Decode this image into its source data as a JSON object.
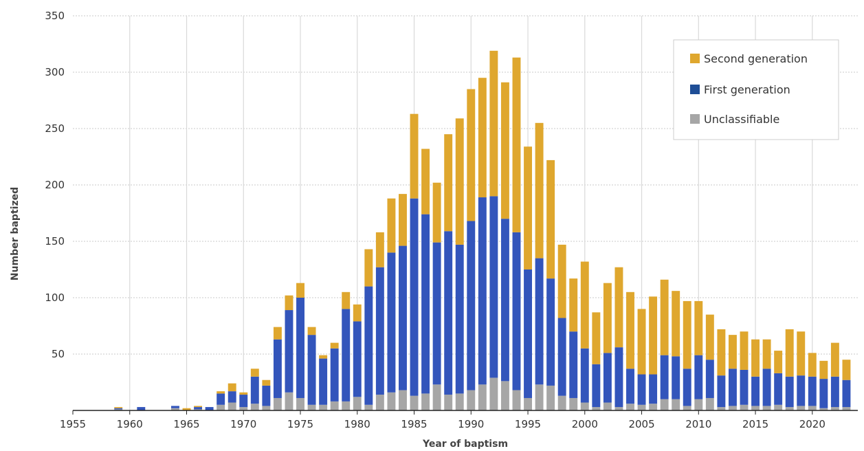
{
  "chart_data": {
    "type": "bar",
    "stacked": true,
    "title": "",
    "xlabel": "Year of baptism",
    "ylabel": "Number baptized",
    "xlim": [
      1955,
      2024
    ],
    "ylim": [
      0,
      350
    ],
    "x_ticks": [
      1955,
      1960,
      1965,
      1970,
      1975,
      1980,
      1985,
      1990,
      1995,
      2000,
      2005,
      2010,
      2015,
      2020
    ],
    "y_ticks": [
      50,
      100,
      150,
      200,
      250,
      300,
      350
    ],
    "grid": true,
    "legend_position": "top-right",
    "x": [
      1959,
      1960,
      1961,
      1962,
      1963,
      1964,
      1965,
      1966,
      1967,
      1968,
      1969,
      1970,
      1971,
      1972,
      1973,
      1974,
      1975,
      1976,
      1977,
      1978,
      1979,
      1980,
      1981,
      1982,
      1983,
      1984,
      1985,
      1986,
      1987,
      1988,
      1989,
      1990,
      1991,
      1992,
      1993,
      1994,
      1995,
      1996,
      1997,
      1998,
      1999,
      2000,
      2001,
      2002,
      2003,
      2004,
      2005,
      2006,
      2007,
      2008,
      2009,
      2010,
      2011,
      2012,
      2013,
      2014,
      2015,
      2016,
      2017,
      2018,
      2019,
      2020,
      2021,
      2022,
      2023
    ],
    "series": [
      {
        "name": "Unclassifiable",
        "color": "#a6a6a6",
        "values": [
          1,
          0,
          0,
          0,
          0,
          2,
          0,
          1,
          0,
          5,
          7,
          3,
          6,
          4,
          11,
          16,
          11,
          5,
          5,
          8,
          8,
          12,
          5,
          14,
          16,
          18,
          13,
          15,
          23,
          14,
          15,
          18,
          23,
          29,
          26,
          18,
          11,
          23,
          22,
          13,
          11,
          7,
          3,
          7,
          3,
          6,
          5,
          6,
          10,
          10,
          4,
          10,
          11,
          3,
          4,
          5,
          4,
          4,
          5,
          3,
          4,
          4,
          2,
          3,
          3
        ]
      },
      {
        "name": "First generation",
        "color": "#3355bb",
        "values": [
          1,
          0,
          3,
          0,
          0,
          2,
          0,
          2,
          3,
          10,
          10,
          11,
          24,
          18,
          52,
          73,
          89,
          62,
          41,
          47,
          82,
          67,
          105,
          113,
          124,
          128,
          175,
          159,
          126,
          145,
          132,
          150,
          166,
          161,
          144,
          140,
          114,
          112,
          95,
          69,
          59,
          48,
          38,
          44,
          53,
          31,
          27,
          26,
          39,
          38,
          33,
          39,
          34,
          28,
          33,
          31,
          26,
          33,
          28,
          27,
          27,
          26,
          26,
          27,
          24
        ]
      },
      {
        "name": "Second generation",
        "color": "#dfa72e",
        "values": [
          1,
          0,
          0,
          0,
          0,
          0,
          2,
          1,
          0,
          2,
          7,
          2,
          7,
          5,
          11,
          13,
          13,
          7,
          3,
          5,
          15,
          15,
          33,
          31,
          48,
          46,
          75,
          58,
          53,
          86,
          112,
          117,
          106,
          129,
          121,
          155,
          109,
          120,
          105,
          65,
          47,
          77,
          46,
          62,
          71,
          68,
          58,
          69,
          67,
          58,
          60,
          48,
          40,
          41,
          30,
          34,
          33,
          26,
          20,
          42,
          39,
          21,
          16,
          30,
          18
        ]
      }
    ],
    "legend": [
      "Second generation",
      "First generation",
      "Unclassifiable"
    ]
  }
}
